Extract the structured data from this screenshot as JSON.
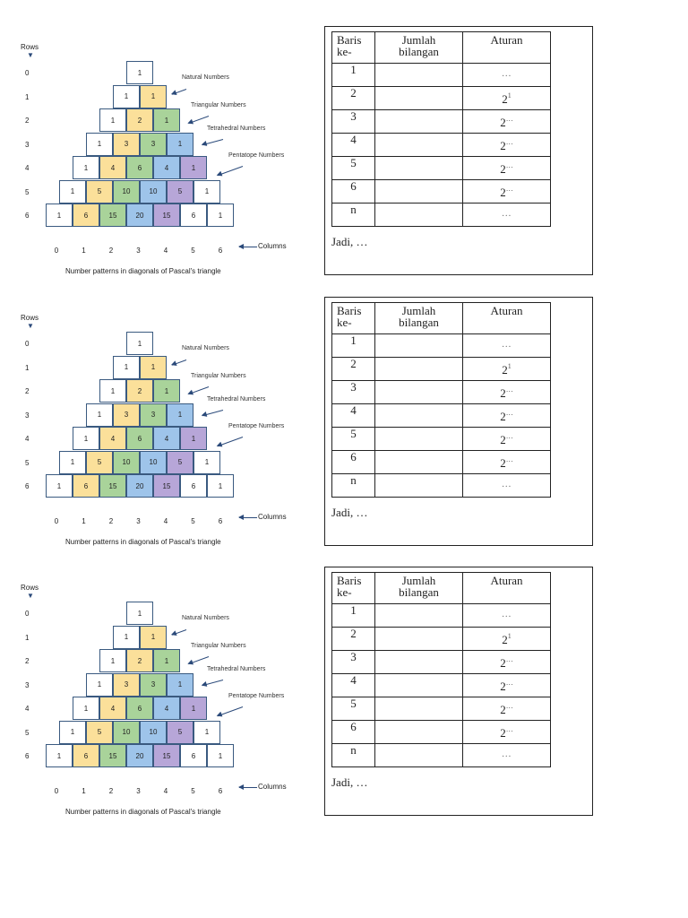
{
  "figure": {
    "rows_label": "Rows",
    "rows_arrow_icon": "down-arrow-icon",
    "row_numbers": [
      "0",
      "1",
      "2",
      "3",
      "4",
      "5",
      "6"
    ],
    "column_numbers": [
      "0",
      "1",
      "2",
      "3",
      "4",
      "5",
      "6"
    ],
    "columns_label": "Columns",
    "caption": "Number patterns in diagonals of Pascal's triangle",
    "annotations": {
      "natural": "Natural Numbers",
      "triangular": "Triangular Numbers",
      "tetrahedral": "Tetrahedral Numbers",
      "pentatope": "Pentatope Numbers"
    },
    "triangle": [
      [
        "1"
      ],
      [
        "1",
        "1"
      ],
      [
        "1",
        "2",
        "1"
      ],
      [
        "1",
        "3",
        "3",
        "1"
      ],
      [
        "1",
        "4",
        "6",
        "4",
        "1"
      ],
      [
        "1",
        "5",
        "10",
        "10",
        "5",
        "1"
      ],
      [
        "1",
        "6",
        "15",
        "20",
        "15",
        "6",
        "1"
      ]
    ],
    "colors": {
      "natural": "#fbe09a",
      "triangular": "#a9d39a",
      "tetrahedral": "#9ec4ea",
      "pentatope": "#b7a6d8"
    }
  },
  "worksheet": {
    "headers": {
      "baris_line1": "Baris",
      "baris_line2": "ke-",
      "jumlah_line1": "Jumlah",
      "jumlah_line2": "bilangan",
      "aturan": "Aturan"
    },
    "rows": [
      {
        "baris": "1",
        "jumlah": "",
        "aturan_base": "",
        "aturan_exp": "",
        "aturan_text": "…"
      },
      {
        "baris": "2",
        "jumlah": "",
        "aturan_base": "2",
        "aturan_exp": "1",
        "aturan_text": ""
      },
      {
        "baris": "3",
        "jumlah": "",
        "aturan_base": "2",
        "aturan_exp": "…",
        "aturan_text": ""
      },
      {
        "baris": "4",
        "jumlah": "",
        "aturan_base": "2",
        "aturan_exp": "…",
        "aturan_text": ""
      },
      {
        "baris": "5",
        "jumlah": "",
        "aturan_base": "2",
        "aturan_exp": "…",
        "aturan_text": ""
      },
      {
        "baris": "6",
        "jumlah": "",
        "aturan_base": "2",
        "aturan_exp": "…",
        "aturan_text": ""
      },
      {
        "baris": "n",
        "jumlah": "",
        "aturan_base": "",
        "aturan_exp": "",
        "aturan_text": "…"
      }
    ],
    "conclusion": "Jadi, …"
  },
  "sections": [
    0,
    1,
    2
  ]
}
